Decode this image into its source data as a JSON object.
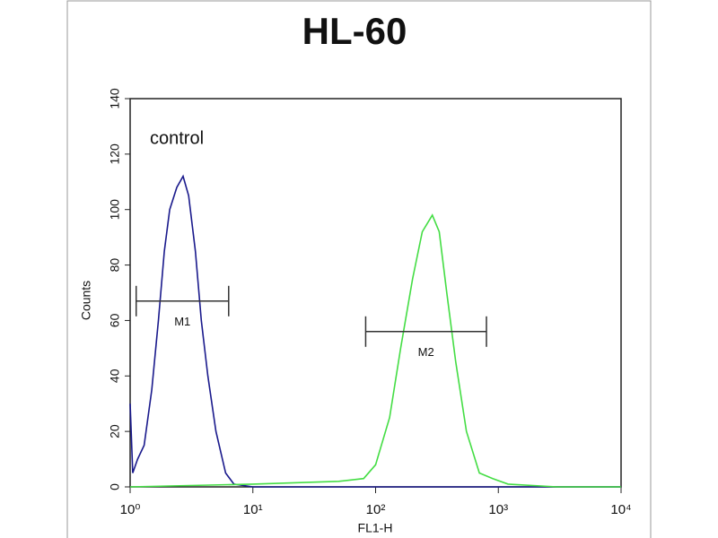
{
  "chart_data": {
    "type": "histogram-line",
    "title": "HL-60",
    "xlabel": "FL1-H",
    "ylabel": "Counts",
    "annotation": "control",
    "xscale": "log",
    "xlim": [
      1,
      10000
    ],
    "xticks": [
      {
        "value": 1,
        "label": "10⁰"
      },
      {
        "value": 10,
        "label": "10¹"
      },
      {
        "value": 100,
        "label": "10²"
      },
      {
        "value": 1000,
        "label": "10³"
      },
      {
        "value": 10000,
        "label": "10⁴"
      }
    ],
    "ylim": [
      0,
      140
    ],
    "yticks": [
      0,
      20,
      40,
      60,
      80,
      100,
      120,
      140
    ],
    "series": [
      {
        "color": "#1a1a8c",
        "x": [
          1,
          1.05,
          1.15,
          1.3,
          1.5,
          1.7,
          1.9,
          2.1,
          2.4,
          2.7,
          3.0,
          3.4,
          3.8,
          4.3,
          5.0,
          6.0,
          7.0,
          10,
          100,
          1000,
          10000
        ],
        "values": [
          30,
          5,
          10,
          15,
          35,
          60,
          85,
          100,
          108,
          112,
          105,
          85,
          60,
          40,
          20,
          5,
          1,
          0,
          0,
          0,
          0
        ]
      },
      {
        "color": "#44dd44",
        "x": [
          1,
          10,
          50,
          80,
          100,
          130,
          160,
          200,
          240,
          290,
          330,
          380,
          450,
          550,
          700,
          900,
          1200,
          3000,
          10000
        ],
        "values": [
          0,
          1,
          2,
          3,
          8,
          25,
          50,
          75,
          92,
          98,
          92,
          70,
          45,
          20,
          5,
          3,
          1,
          0,
          0
        ]
      }
    ],
    "markers": [
      {
        "label": "M1",
        "x": [
          1.12,
          6.35
        ],
        "y": 67
      },
      {
        "label": "M2",
        "x": [
          83,
          800
        ],
        "y": 56
      }
    ]
  }
}
